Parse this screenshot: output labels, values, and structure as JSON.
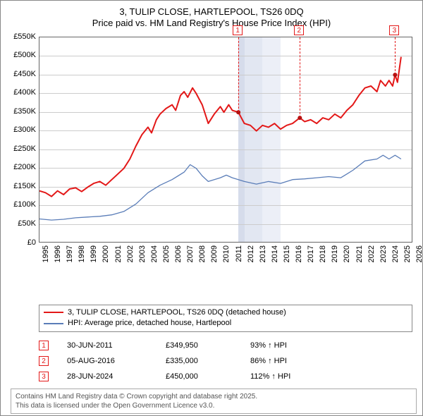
{
  "title": {
    "line1": "3, TULIP CLOSE, HARTLEPOOL, TS26 0DQ",
    "line2": "Price paid vs. HM Land Registry's House Price Index (HPI)"
  },
  "chart": {
    "type": "line",
    "background_color": "#ffffff",
    "grid_color": "#cccccc",
    "axis_color": "#666666",
    "ylim": [
      0,
      550
    ],
    "ytick_step": 50,
    "ytick_prefix": "£",
    "ytick_suffix": "K",
    "xyears": [
      1995,
      1996,
      1997,
      1998,
      1999,
      2000,
      2001,
      2002,
      2003,
      2004,
      2005,
      2006,
      2007,
      2008,
      2009,
      2010,
      2011,
      2012,
      2013,
      2014,
      2015,
      2016,
      2017,
      2018,
      2019,
      2020,
      2021,
      2022,
      2023,
      2024,
      2025,
      2026
    ],
    "shaded_bands": [
      {
        "from_year": 2011.5,
        "to_year": 2012.0,
        "color": "#d6dceb"
      },
      {
        "from_year": 2012.0,
        "to_year": 2013.5,
        "color": "#e2e7f2"
      },
      {
        "from_year": 2013.5,
        "to_year": 2015.0,
        "color": "#eceff7"
      }
    ],
    "series": [
      {
        "key": "price_paid",
        "label": "3, TULIP CLOSE, HARTLEPOOL, TS26 0DQ (detached house)",
        "color": "#e31818",
        "width": 2,
        "points": [
          [
            1995,
            140
          ],
          [
            1995.5,
            135
          ],
          [
            1996,
            125
          ],
          [
            1996.5,
            140
          ],
          [
            1997,
            130
          ],
          [
            1997.5,
            145
          ],
          [
            1998,
            148
          ],
          [
            1998.5,
            138
          ],
          [
            1999,
            150
          ],
          [
            1999.5,
            160
          ],
          [
            2000,
            165
          ],
          [
            2000.5,
            155
          ],
          [
            2001,
            170
          ],
          [
            2001.5,
            185
          ],
          [
            2002,
            200
          ],
          [
            2002.5,
            225
          ],
          [
            2003,
            260
          ],
          [
            2003.5,
            290
          ],
          [
            2004,
            310
          ],
          [
            2004.3,
            295
          ],
          [
            2004.7,
            330
          ],
          [
            2005,
            345
          ],
          [
            2005.5,
            360
          ],
          [
            2006,
            370
          ],
          [
            2006.3,
            355
          ],
          [
            2006.7,
            395
          ],
          [
            2007,
            405
          ],
          [
            2007.3,
            390
          ],
          [
            2007.7,
            415
          ],
          [
            2008,
            400
          ],
          [
            2008.5,
            370
          ],
          [
            2009,
            320
          ],
          [
            2009.5,
            345
          ],
          [
            2010,
            365
          ],
          [
            2010.3,
            350
          ],
          [
            2010.7,
            370
          ],
          [
            2011,
            355
          ],
          [
            2011.5,
            350
          ],
          [
            2012,
            320
          ],
          [
            2012.5,
            315
          ],
          [
            2013,
            300
          ],
          [
            2013.5,
            315
          ],
          [
            2014,
            310
          ],
          [
            2014.5,
            320
          ],
          [
            2015,
            305
          ],
          [
            2015.5,
            315
          ],
          [
            2016,
            320
          ],
          [
            2016.6,
            335
          ],
          [
            2017,
            325
          ],
          [
            2017.5,
            330
          ],
          [
            2018,
            320
          ],
          [
            2018.5,
            335
          ],
          [
            2019,
            330
          ],
          [
            2019.5,
            345
          ],
          [
            2020,
            335
          ],
          [
            2020.5,
            355
          ],
          [
            2021,
            370
          ],
          [
            2021.5,
            395
          ],
          [
            2022,
            415
          ],
          [
            2022.5,
            420
          ],
          [
            2023,
            405
          ],
          [
            2023.3,
            435
          ],
          [
            2023.7,
            420
          ],
          [
            2024,
            435
          ],
          [
            2024.3,
            420
          ],
          [
            2024.5,
            450
          ],
          [
            2024.7,
            430
          ],
          [
            2025,
            498
          ]
        ]
      },
      {
        "key": "hpi",
        "label": "HPI: Average price, detached house, Hartlepool",
        "color": "#5a7db8",
        "width": 1.3,
        "points": [
          [
            1995,
            65
          ],
          [
            1996,
            62
          ],
          [
            1997,
            64
          ],
          [
            1998,
            68
          ],
          [
            1999,
            70
          ],
          [
            2000,
            72
          ],
          [
            2001,
            76
          ],
          [
            2002,
            85
          ],
          [
            2003,
            105
          ],
          [
            2004,
            135
          ],
          [
            2005,
            155
          ],
          [
            2006,
            170
          ],
          [
            2007,
            190
          ],
          [
            2007.5,
            210
          ],
          [
            2008,
            200
          ],
          [
            2008.5,
            180
          ],
          [
            2009,
            165
          ],
          [
            2010,
            175
          ],
          [
            2010.5,
            182
          ],
          [
            2011,
            175
          ],
          [
            2012,
            165
          ],
          [
            2013,
            158
          ],
          [
            2014,
            165
          ],
          [
            2015,
            160
          ],
          [
            2016,
            170
          ],
          [
            2017,
            172
          ],
          [
            2018,
            175
          ],
          [
            2019,
            178
          ],
          [
            2020,
            175
          ],
          [
            2020.5,
            185
          ],
          [
            2021,
            195
          ],
          [
            2022,
            220
          ],
          [
            2023,
            225
          ],
          [
            2023.5,
            235
          ],
          [
            2024,
            225
          ],
          [
            2024.5,
            235
          ],
          [
            2025,
            225
          ]
        ]
      }
    ],
    "sale_markers": [
      {
        "n": "1",
        "year": 2011.5,
        "y_dot": 350,
        "label_y_top": -2
      },
      {
        "n": "2",
        "year": 2016.6,
        "y_dot": 335,
        "label_y_top": -2
      },
      {
        "n": "3",
        "year": 2024.5,
        "y_dot": 450,
        "label_y_top": -2
      }
    ],
    "marker_dot_color": "#b01010",
    "marker_dot_radius": 3
  },
  "legend": {
    "items": [
      {
        "series_key": "price_paid"
      },
      {
        "series_key": "hpi"
      }
    ]
  },
  "sales": [
    {
      "n": "1",
      "date": "30-JUN-2011",
      "price": "£349,950",
      "pct": "93% ↑ HPI"
    },
    {
      "n": "2",
      "date": "05-AUG-2016",
      "price": "£335,000",
      "pct": "86% ↑ HPI"
    },
    {
      "n": "3",
      "date": "28-JUN-2024",
      "price": "£450,000",
      "pct": "112% ↑ HPI"
    }
  ],
  "footer": {
    "line1": "Contains HM Land Registry data © Crown copyright and database right 2025.",
    "line2": "This data is licensed under the Open Government Licence v3.0."
  }
}
